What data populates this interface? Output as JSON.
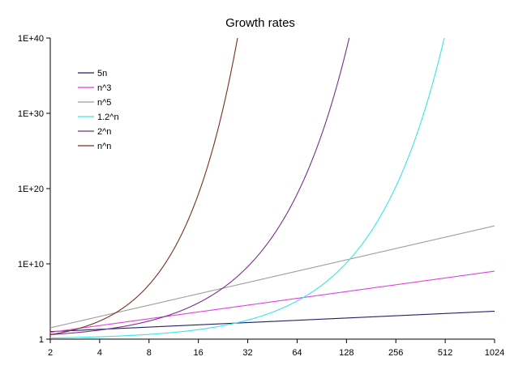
{
  "chart_data": {
    "type": "line",
    "title": "Growth rates",
    "xlabel": "",
    "ylabel": "",
    "x_scale": "log2",
    "y_scale": "log10",
    "xlim": [
      2,
      1024
    ],
    "ylim": [
      1,
      1e+40
    ],
    "x_ticks": [
      2,
      4,
      8,
      16,
      32,
      64,
      128,
      256,
      512,
      1024
    ],
    "x_tick_labels": [
      "2",
      "4",
      "8",
      "16",
      "32",
      "64",
      "128",
      "256",
      "512",
      "1024"
    ],
    "y_ticks": [
      1,
      10000000000.0,
      1e+20,
      1e+30,
      1e+40
    ],
    "y_tick_labels": [
      "1",
      "1E+10",
      "1E+20",
      "1E+30",
      "1E+40"
    ],
    "grid": false,
    "legend_position": "top-left",
    "series": [
      {
        "name": "5n",
        "color": "#1f1f6e",
        "formula": "5*n"
      },
      {
        "name": "n^3",
        "color": "#e23fe0",
        "formula": "n^3"
      },
      {
        "name": "n^5",
        "color": "#9e9e9e",
        "formula": "n^5"
      },
      {
        "name": "1.2^n",
        "color": "#39e5e5",
        "formula": "1.2^n"
      },
      {
        "name": "2^n",
        "color": "#7a2f8c",
        "formula": "2^n"
      },
      {
        "name": "n^n",
        "color": "#7a2e22",
        "formula": "n^n"
      }
    ]
  }
}
